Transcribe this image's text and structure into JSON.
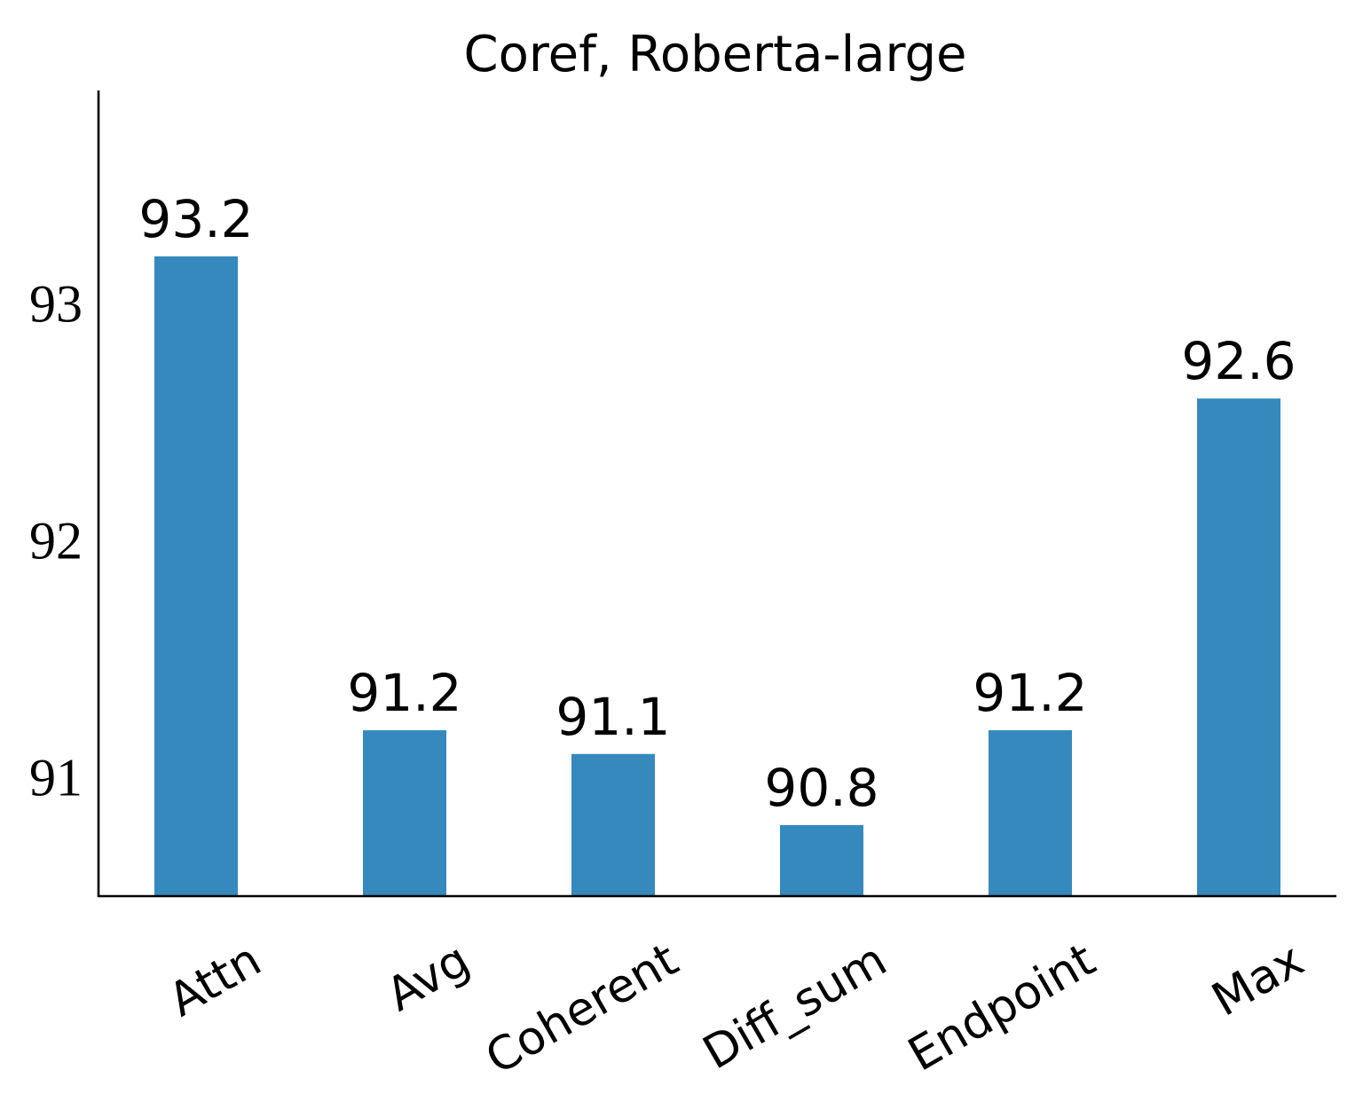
{
  "chart_data": {
    "type": "bar",
    "title": "Coref, Roberta-large",
    "xlabel": "",
    "ylabel": "",
    "categories": [
      "Attn",
      "Avg",
      "Coherent",
      "Diff_sum",
      "Endpoint",
      "Max"
    ],
    "values": [
      93.2,
      91.2,
      91.1,
      90.8,
      91.2,
      92.6
    ],
    "value_labels": [
      "93.2",
      "91.2",
      "91.1",
      "90.8",
      "91.2",
      "92.6"
    ],
    "ylim": [
      90.5,
      93.9
    ],
    "yticks": [
      91,
      92,
      93
    ],
    "ytick_labels": [
      "91",
      "92",
      "93"
    ],
    "bar_color": "#3589bd",
    "axis_color": "#000000",
    "grid": false,
    "legend": "none",
    "spines": [
      "left",
      "bottom"
    ],
    "xtick_rotation_deg": -30
  }
}
